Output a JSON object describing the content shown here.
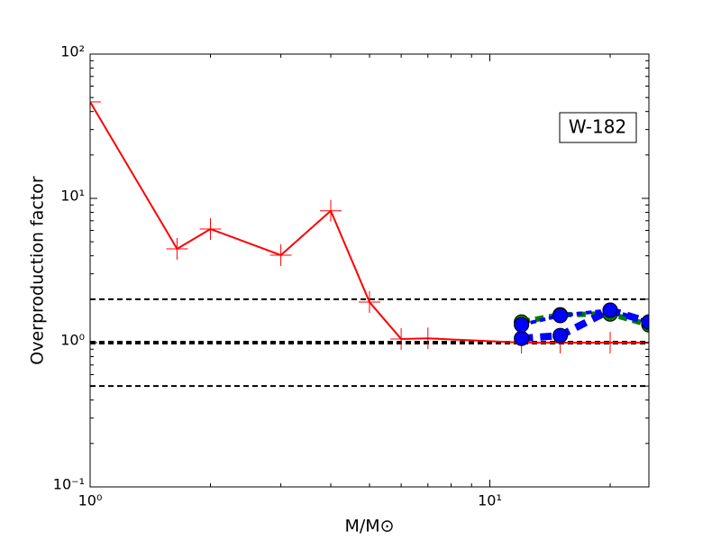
{
  "chart_data": {
    "type": "line",
    "xlabel": "M/M⊙",
    "ylabel": "Overproduction factor",
    "annotation": "W-182",
    "xscale": "log",
    "yscale": "log",
    "xlim": [
      1,
      25
    ],
    "ylim": [
      0.1,
      100
    ],
    "xticks": [
      {
        "value": 1,
        "label": "10⁰"
      },
      {
        "value": 10,
        "label": "10¹"
      }
    ],
    "yticks": [
      {
        "value": 0.1,
        "label": "10⁻¹"
      },
      {
        "value": 1,
        "label": "10⁰"
      },
      {
        "value": 10,
        "label": "10¹"
      },
      {
        "value": 100,
        "label": "10²"
      }
    ],
    "hlines": [
      {
        "value": 0.5,
        "color": "#000000",
        "width": 2
      },
      {
        "value": 1,
        "color": "#000000",
        "width": 4
      },
      {
        "value": 2,
        "color": "#000000",
        "width": 2
      }
    ],
    "series": [
      {
        "color": "#ff0000",
        "linestyle": "solid",
        "linewidth": 2,
        "marker": "plus",
        "x": [
          1,
          1.65,
          2,
          3,
          4,
          5,
          6,
          7,
          12,
          15,
          20,
          25
        ],
        "values": [
          46.6,
          4.47,
          6.13,
          4.04,
          8.2,
          1.91,
          1.06,
          1.07,
          1.0,
          1.0,
          1.0,
          1.0
        ]
      },
      {
        "color": "#007f00",
        "linestyle": "dashed",
        "linewidth": 6,
        "marker": "circle",
        "x": [
          12,
          15,
          20,
          25
        ],
        "values": [
          1.39,
          1.56,
          1.58,
          1.33
        ]
      },
      {
        "color": "#0000ff",
        "linestyle": "dashed",
        "linewidth": 8,
        "marker": "circle",
        "x": [
          12,
          15,
          20,
          25
        ],
        "values": [
          1.07,
          1.12,
          1.68,
          1.39
        ]
      },
      {
        "color": "#0000ff",
        "linestyle": "dashed",
        "linewidth": 4,
        "marker": "circle",
        "x": [
          12,
          15,
          20,
          25
        ],
        "values": [
          1.33,
          1.54,
          1.68,
          1.39
        ]
      }
    ]
  }
}
